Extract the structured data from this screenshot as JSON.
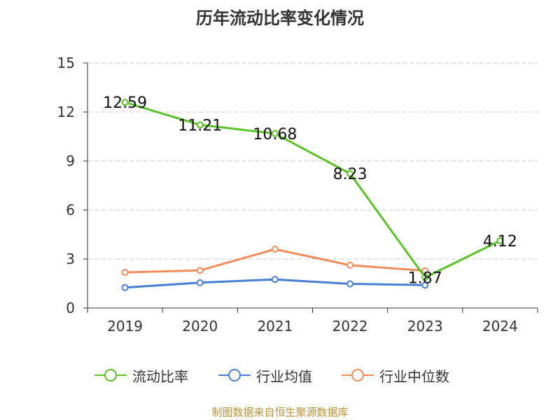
{
  "title": "历年流动比率变化情况",
  "source": "制图数据来自恒生聚源数据库",
  "chart_data": {
    "type": "line",
    "title": "历年流动比率变化情况",
    "categories": [
      "2019",
      "2020",
      "2021",
      "2022",
      "2023",
      "2024"
    ],
    "ylim": [
      0,
      15
    ],
    "yticks": [
      0,
      3,
      6,
      9,
      12,
      15
    ],
    "grid": true,
    "legend_position": "bottom",
    "series": [
      {
        "name": "流动比率",
        "color": "#5cc227",
        "values": [
          12.59,
          11.21,
          10.68,
          8.23,
          1.87,
          4.12
        ],
        "labels": [
          "12.59",
          "11.21",
          "10.68",
          "8.23",
          "1.87",
          "4.12"
        ]
      },
      {
        "name": "行业均值",
        "color": "#4a7fd8",
        "values": [
          1.25,
          1.55,
          1.75,
          1.48,
          1.4,
          null
        ]
      },
      {
        "name": "行业中位数",
        "color": "#f28c5c",
        "values": [
          2.18,
          2.3,
          3.6,
          2.62,
          2.28,
          null
        ]
      }
    ]
  }
}
